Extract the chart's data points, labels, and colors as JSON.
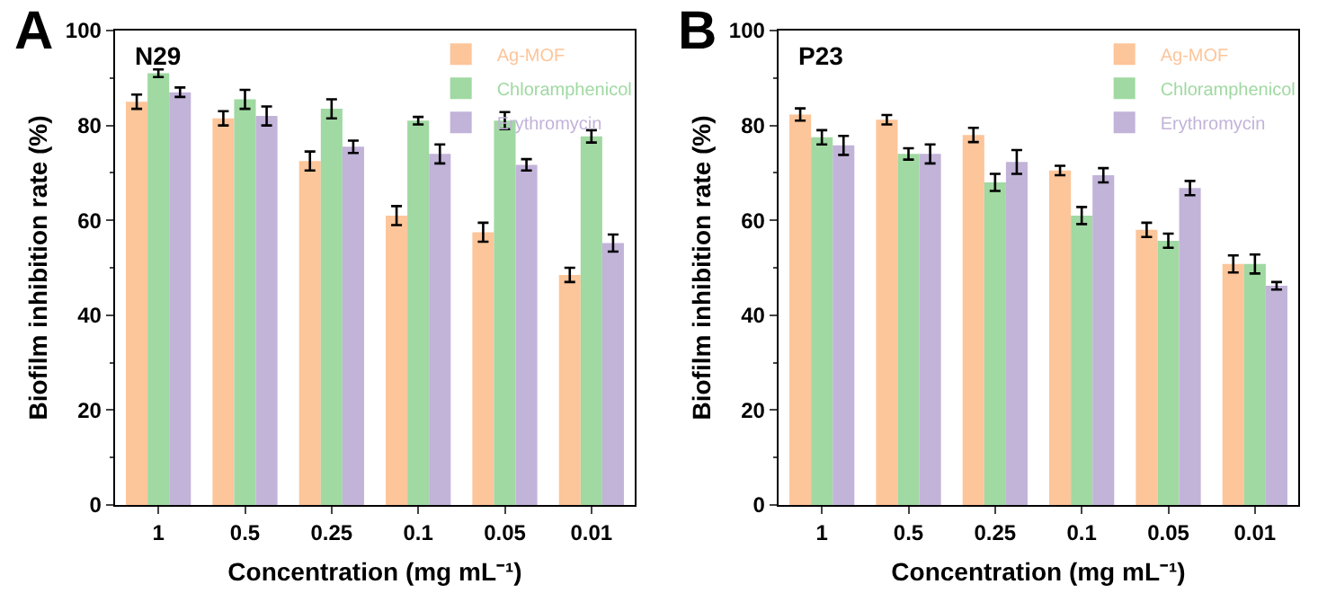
{
  "chart_data": [
    {
      "type": "bar",
      "annotations": [
        "A",
        "N29"
      ],
      "xlabel": "Concentration (mg mL⁻¹)",
      "ylabel": "Biofilm inhibition rate (%)",
      "categories": [
        "1",
        "0.5",
        "0.25",
        "0.1",
        "0.05",
        "0.01"
      ],
      "ylim": [
        0,
        100
      ],
      "yticks": [
        0,
        20,
        40,
        60,
        80,
        100
      ],
      "legend": "top right",
      "series": [
        {
          "name": "Ag-MOF",
          "color": "#fdc59a",
          "values": [
            85,
            81.5,
            72.5,
            61,
            57.5,
            48.5
          ],
          "errors": [
            1.5,
            1.5,
            2,
            2,
            2,
            1.5
          ]
        },
        {
          "name": "Chloramphenicol",
          "color": "#a0d9a2",
          "values": [
            91,
            85.5,
            83.5,
            81,
            81,
            77.7
          ],
          "errors": [
            0.8,
            2,
            2,
            0.8,
            1.8,
            1.3
          ]
        },
        {
          "name": "Erythromycin",
          "color": "#c2b3d9",
          "values": [
            87,
            82,
            75.5,
            74,
            71.7,
            55.2
          ],
          "errors": [
            1,
            2,
            1.3,
            2,
            1.2,
            1.8
          ]
        }
      ]
    },
    {
      "type": "bar",
      "annotations": [
        "B",
        "P23"
      ],
      "xlabel": "Concentration (mg mL⁻¹)",
      "ylabel": "Biofilm inhibition rate (%)",
      "categories": [
        "1",
        "0.5",
        "0.25",
        "0.1",
        "0.05",
        "0.01"
      ],
      "ylim": [
        0,
        100
      ],
      "yticks": [
        0,
        20,
        40,
        60,
        80,
        100
      ],
      "legend": "top right",
      "series": [
        {
          "name": "Ag-MOF",
          "color": "#fdc59a",
          "values": [
            82.3,
            81.2,
            78,
            70.5,
            58,
            50.8
          ],
          "errors": [
            1.3,
            1,
            1.5,
            1,
            1.5,
            1.8
          ]
        },
        {
          "name": "Chloramphenicol",
          "color": "#a0d9a2",
          "values": [
            77.5,
            74,
            68,
            61,
            55.7,
            50.8
          ],
          "errors": [
            1.5,
            1.2,
            1.8,
            1.8,
            1.5,
            2
          ]
        },
        {
          "name": "Erythromycin",
          "color": "#c2b3d9",
          "values": [
            75.8,
            74,
            72.3,
            69.5,
            66.8,
            46.2
          ],
          "errors": [
            2,
            2,
            2.5,
            1.5,
            1.5,
            0.8
          ]
        }
      ]
    }
  ]
}
